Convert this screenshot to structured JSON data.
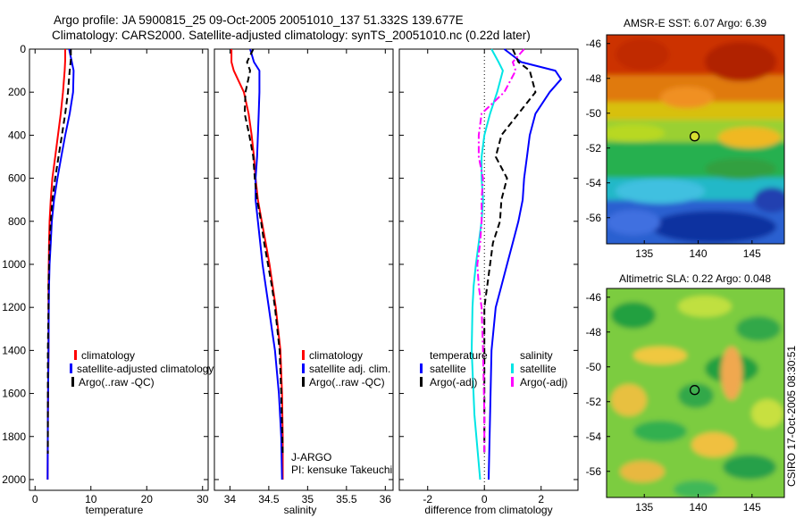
{
  "header": {
    "line1": "Argo profile: JA 5900815_25 09-Oct-2005 20051010_137 51.332S 139.677E",
    "line2": "Climatology: CARS2000. Satellite-adjusted climatology: synTS_20051010.nc (0.22d later)"
  },
  "side_stamp": "CSIRO 17-Oct-2005 08:30:51",
  "chart_data": [
    {
      "id": "temperature",
      "type": "line",
      "xlabel": "temperature",
      "xlim": [
        -1,
        31
      ],
      "ylim": [
        0,
        2050
      ],
      "y_inverted": true,
      "xticks": [
        0,
        10,
        20,
        30
      ],
      "yticks": [
        0,
        200,
        400,
        600,
        800,
        1000,
        1200,
        1400,
        1600,
        1800,
        2000
      ],
      "legend": {
        "entries": [
          "climatology",
          "satellite-adjusted climatology",
          "Argo(..raw -QC)"
        ],
        "colors": [
          "#ff0000",
          "#0000ff",
          "#000000"
        ]
      },
      "series": [
        {
          "name": "climatology",
          "color": "#ff0000",
          "dash": "solid",
          "x": [
            5.4,
            5.4,
            5.3,
            5.0,
            4.6,
            4.1,
            3.6,
            3.1,
            2.8,
            2.6,
            2.5,
            2.45,
            2.4,
            2.4,
            2.4,
            2.3,
            2.25
          ],
          "y": [
            0,
            50,
            100,
            200,
            300,
            400,
            500,
            600,
            700,
            800,
            900,
            1000,
            1100,
            1200,
            1400,
            1700,
            2000
          ]
        },
        {
          "name": "satellite-adjusted climatology",
          "color": "#0000ff",
          "dash": "solid",
          "x": [
            6.1,
            6.5,
            6.9,
            6.8,
            6.2,
            5.4,
            4.7,
            4.0,
            3.4,
            3.0,
            2.8,
            2.6,
            2.5,
            2.45,
            2.4,
            2.3,
            2.25
          ],
          "y": [
            0,
            50,
            100,
            200,
            300,
            400,
            500,
            600,
            700,
            800,
            900,
            1000,
            1100,
            1200,
            1400,
            1700,
            2000
          ]
        },
        {
          "name": "Argo(..raw -QC)",
          "color": "#000000",
          "dash": "dash",
          "x": [
            6.4,
            6.4,
            6.2,
            5.9,
            5.4,
            4.8,
            4.2,
            3.6,
            3.1,
            2.8,
            2.6,
            2.5,
            2.4,
            2.4,
            2.3,
            2.3,
            2.3
          ],
          "y": [
            0,
            50,
            100,
            200,
            300,
            400,
            500,
            600,
            700,
            800,
            900,
            1000,
            1100,
            1200,
            1400,
            1700,
            1880
          ]
        }
      ]
    },
    {
      "id": "salinity",
      "type": "line",
      "xlabel": "salinity",
      "xlim": [
        33.8,
        36.1
      ],
      "ylim": [
        0,
        2050
      ],
      "y_inverted": true,
      "xticks": [
        34,
        34.5,
        35,
        35.5,
        36
      ],
      "legend": {
        "entries": [
          "climatology",
          "satellite adj. clim.",
          "Argo(..raw -QC)"
        ],
        "colors": [
          "#ff0000",
          "#0000ff",
          "#000000"
        ]
      },
      "annotations": [
        "J-ARGO",
        "PI: kensuke Takeuchi"
      ],
      "series": [
        {
          "name": "climatology",
          "color": "#ff0000",
          "dash": "solid",
          "x": [
            34.02,
            34.02,
            34.05,
            34.18,
            34.24,
            34.28,
            34.31,
            34.33,
            34.36,
            34.41,
            34.46,
            34.51,
            34.55,
            34.59,
            34.62,
            34.65,
            34.67,
            34.68,
            34.68
          ],
          "y": [
            0,
            60,
            100,
            200,
            300,
            400,
            500,
            600,
            700,
            800,
            900,
            1000,
            1100,
            1200,
            1300,
            1400,
            1600,
            1800,
            2000
          ]
        },
        {
          "name": "satellite adj. clim.",
          "color": "#0000ff",
          "dash": "solid",
          "x": [
            34.26,
            34.31,
            34.38,
            34.38,
            34.37,
            34.36,
            34.35,
            34.33,
            34.33,
            34.36,
            34.39,
            34.42,
            34.46,
            34.5,
            34.54,
            34.58,
            34.63,
            34.66,
            34.67
          ],
          "y": [
            0,
            60,
            100,
            200,
            300,
            400,
            500,
            600,
            700,
            800,
            900,
            1000,
            1100,
            1200,
            1300,
            1400,
            1600,
            1800,
            2000
          ]
        },
        {
          "name": "Argo(..raw -QC)",
          "color": "#000000",
          "dash": "dash",
          "x": [
            34.3,
            34.22,
            34.26,
            34.2,
            34.19,
            34.25,
            34.3,
            34.32,
            34.35,
            34.4,
            34.44,
            34.49,
            34.54,
            34.58,
            34.61,
            34.64,
            34.66,
            34.68
          ],
          "y": [
            0,
            60,
            100,
            200,
            300,
            400,
            500,
            600,
            700,
            800,
            900,
            1000,
            1100,
            1200,
            1300,
            1400,
            1600,
            1880
          ]
        }
      ]
    },
    {
      "id": "difference",
      "type": "line",
      "xlabel": "difference from climatology",
      "xlim": [
        -3,
        3.3
      ],
      "ylim": [
        0,
        2050
      ],
      "y_inverted": true,
      "xticks": [
        -2,
        0,
        2
      ],
      "legend": {
        "group_titles": [
          "temperature",
          "salinity"
        ],
        "entries": [
          "satellite",
          "Argo(-adj)",
          "satellite",
          "Argo(-adj)"
        ],
        "colors": [
          "#0000ff",
          "#000000",
          "#00e5e5",
          "#ff00ff"
        ]
      },
      "series": [
        {
          "name": "temperature satellite",
          "color": "#0000ff",
          "dash": "solid",
          "x": [
            0.7,
            1.3,
            2.5,
            2.7,
            2.3,
            1.8,
            1.6,
            1.5,
            1.4,
            1.35,
            1.2,
            1.0,
            0.8,
            0.6,
            0.4,
            0.25,
            0.2,
            0.15
          ],
          "y": [
            0,
            60,
            100,
            140,
            200,
            300,
            400,
            500,
            600,
            700,
            800,
            900,
            1000,
            1100,
            1200,
            1400,
            1700,
            2000
          ]
        },
        {
          "name": "temperature Argo(-adj)",
          "color": "#000000",
          "dash": "dash",
          "x": [
            1.0,
            1.2,
            1.6,
            1.8,
            1.2,
            0.6,
            0.4,
            0.8,
            0.6,
            0.55,
            0.3,
            0.2,
            0.1,
            0.0,
            0.0,
            0.0,
            0.0
          ],
          "y": [
            0,
            60,
            100,
            200,
            300,
            400,
            500,
            600,
            700,
            800,
            900,
            1000,
            1100,
            1200,
            1400,
            1700,
            1880
          ]
        },
        {
          "name": "salinity satellite",
          "color": "#00e5e5",
          "dash": "solid",
          "x": [
            0.25,
            0.5,
            0.65,
            0.45,
            0.2,
            0.0,
            -0.1,
            -0.1,
            -0.05,
            -0.1,
            -0.2,
            -0.3,
            -0.38,
            -0.42,
            -0.45,
            -0.35,
            -0.15
          ],
          "y": [
            0,
            60,
            100,
            200,
            300,
            400,
            500,
            600,
            700,
            800,
            900,
            1000,
            1100,
            1200,
            1400,
            1700,
            2000
          ]
        },
        {
          "name": "salinity Argo(-adj)",
          "color": "#ff00ff",
          "dash": "dashdot",
          "x": [
            1.4,
            1.0,
            1.1,
            0.7,
            -0.1,
            -0.2,
            -0.2,
            -0.05,
            -0.1,
            -0.1,
            -0.15,
            -0.25,
            -0.2,
            -0.1,
            -0.05,
            0.0,
            0.0
          ],
          "y": [
            0,
            60,
            100,
            200,
            300,
            400,
            500,
            600,
            700,
            800,
            900,
            1000,
            1100,
            1200,
            1400,
            1700,
            1880
          ]
        }
      ]
    },
    {
      "id": "sst-map",
      "type": "heatmap",
      "title": "AMSR-E SST: 6.07 Argo: 6.39",
      "xlim": [
        131.5,
        148
      ],
      "ylim": [
        -57.5,
        -45.5
      ],
      "xticks": [
        135,
        140,
        145
      ],
      "yticks": [
        -46,
        -48,
        -50,
        -52,
        -54,
        -56
      ],
      "marker": {
        "lon": 139.677,
        "lat": -51.332
      }
    },
    {
      "id": "sla-map",
      "type": "heatmap",
      "title": "Altimetric SLA: 0.22 Argo: 0.048",
      "xlim": [
        131.5,
        148
      ],
      "ylim": [
        -57.5,
        -45.5
      ],
      "xticks": [
        135,
        140,
        145
      ],
      "yticks": [
        -46,
        -48,
        -50,
        -52,
        -54,
        -56
      ],
      "marker": {
        "lon": 139.677,
        "lat": -51.332
      }
    }
  ]
}
